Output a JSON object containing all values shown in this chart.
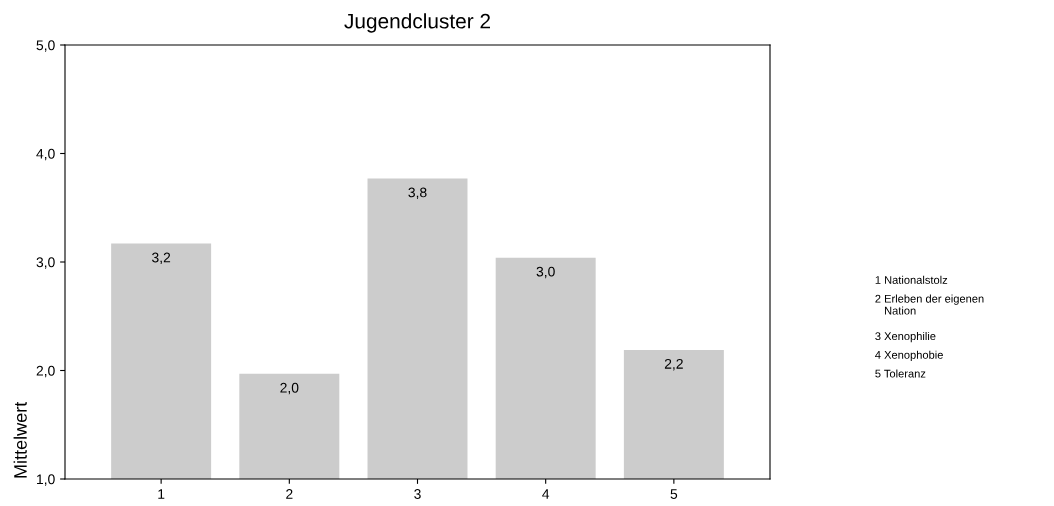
{
  "chart_data": {
    "type": "bar",
    "title": "Jugendcluster 2",
    "ylabel": "Mittelwert",
    "categories": [
      "1",
      "2",
      "3",
      "4",
      "5"
    ],
    "values": [
      3.17,
      1.97,
      3.77,
      3.04,
      2.19
    ],
    "value_labels": [
      "3,2",
      "2,0",
      "3,8",
      "3,0",
      "2,2"
    ],
    "color": "#cccccc",
    "ylim": [
      1,
      5
    ],
    "yticks": [
      {
        "value": 1,
        "label": "1,0"
      },
      {
        "value": 2,
        "label": "2,0"
      },
      {
        "value": 3,
        "label": "3,0"
      },
      {
        "value": 4,
        "label": "4,0"
      },
      {
        "value": 5,
        "label": "5,0"
      }
    ],
    "grid": false,
    "annotations": [
      "1 Nationalstolz",
      "2 Erleben der eigenen\n   Nation",
      "3 Xenophilie",
      "4 Xenophobie",
      "5 Toleranz"
    ]
  }
}
